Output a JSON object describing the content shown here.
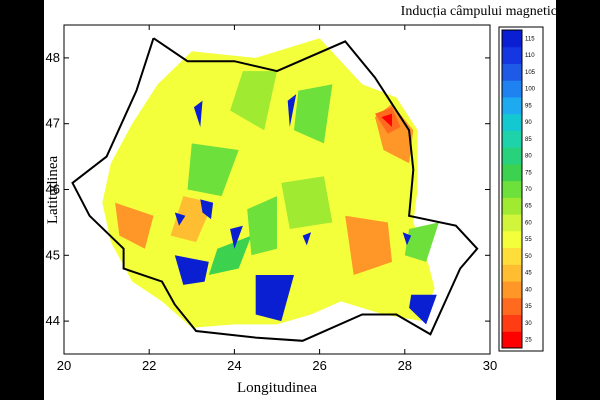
{
  "chart_data": {
    "type": "heatmap",
    "title": "Inducția câmpului magnetic terestru (μT)",
    "xlabel": "Longitudinea",
    "ylabel": "Latitudinea",
    "xlim": [
      20,
      30
    ],
    "ylim": [
      43.5,
      48.5
    ],
    "xticks": [
      20,
      22,
      24,
      26,
      28,
      30
    ],
    "yticks": [
      44,
      45,
      46,
      47,
      48
    ],
    "colorbar": {
      "min": 25,
      "max": 115,
      "step": 5,
      "ticks": [
        25,
        30,
        35,
        40,
        45,
        50,
        55,
        60,
        65,
        70,
        75,
        80,
        85,
        90,
        95,
        100,
        105,
        110,
        115
      ],
      "colors": [
        "#ff0000",
        "#ff3c14",
        "#ff6a1e",
        "#ff9628",
        "#ffbe32",
        "#ffde3c",
        "#f4ff3c",
        "#d2f53c",
        "#a0ea32",
        "#6ee03c",
        "#3cd250",
        "#28d27d",
        "#1ed2aa",
        "#14c8d2",
        "#1eaaf0",
        "#1e82f0",
        "#1e5ae6",
        "#1437e1",
        "#0a1ed2"
      ]
    },
    "outline": [
      [
        22.1,
        48.3
      ],
      [
        22.9,
        47.95
      ],
      [
        24.0,
        47.95
      ],
      [
        25.0,
        47.8
      ],
      [
        26.6,
        48.25
      ],
      [
        27.3,
        47.7
      ],
      [
        28.1,
        46.9
      ],
      [
        28.2,
        46.3
      ],
      [
        28.1,
        45.6
      ],
      [
        29.2,
        45.45
      ],
      [
        29.7,
        45.1
      ],
      [
        29.3,
        44.8
      ],
      [
        28.6,
        43.8
      ],
      [
        27.8,
        44.1
      ],
      [
        27.0,
        44.1
      ],
      [
        25.6,
        43.7
      ],
      [
        24.5,
        43.75
      ],
      [
        23.1,
        43.85
      ],
      [
        22.6,
        44.25
      ],
      [
        22.3,
        44.6
      ],
      [
        21.4,
        44.8
      ],
      [
        21.4,
        45.1
      ],
      [
        20.6,
        45.6
      ],
      [
        20.2,
        46.1
      ],
      [
        21.0,
        46.5
      ],
      [
        21.7,
        47.5
      ],
      [
        22.1,
        48.3
      ]
    ],
    "field_region": [
      [
        23.0,
        48.1
      ],
      [
        24.5,
        48.0
      ],
      [
        26.0,
        48.3
      ],
      [
        27.0,
        47.6
      ],
      [
        27.8,
        47.4
      ],
      [
        28.3,
        46.9
      ],
      [
        28.3,
        46.0
      ],
      [
        28.2,
        45.5
      ],
      [
        28.5,
        45.0
      ],
      [
        28.7,
        44.5
      ],
      [
        28.4,
        44.0
      ],
      [
        27.5,
        44.1
      ],
      [
        26.5,
        44.3
      ],
      [
        25.8,
        44.1
      ],
      [
        25.0,
        43.95
      ],
      [
        24.0,
        43.95
      ],
      [
        23.0,
        43.9
      ],
      [
        22.3,
        44.3
      ],
      [
        21.6,
        44.6
      ],
      [
        21.1,
        45.2
      ],
      [
        20.9,
        45.8
      ],
      [
        21.1,
        46.4
      ],
      [
        21.6,
        47.0
      ],
      [
        22.2,
        47.6
      ],
      [
        23.0,
        48.1
      ]
    ],
    "patches": [
      {
        "value": 40,
        "points": [
          [
            27.3,
            47.1
          ],
          [
            27.7,
            47.3
          ],
          [
            28.2,
            46.9
          ],
          [
            28.1,
            46.4
          ],
          [
            27.5,
            46.6
          ]
        ]
      },
      {
        "value": 35,
        "points": [
          [
            27.3,
            47.15
          ],
          [
            27.7,
            47.25
          ],
          [
            27.9,
            46.95
          ],
          [
            27.6,
            46.85
          ]
        ]
      },
      {
        "value": 25,
        "points": [
          [
            27.45,
            47.1
          ],
          [
            27.7,
            47.15
          ],
          [
            27.7,
            46.95
          ]
        ]
      },
      {
        "value": 65,
        "points": [
          [
            24.2,
            47.8
          ],
          [
            25.0,
            47.8
          ],
          [
            24.7,
            46.9
          ],
          [
            23.9,
            47.2
          ]
        ]
      },
      {
        "value": 70,
        "points": [
          [
            25.5,
            47.5
          ],
          [
            26.3,
            47.6
          ],
          [
            26.1,
            46.7
          ],
          [
            25.4,
            46.9
          ]
        ]
      },
      {
        "value": 70,
        "points": [
          [
            23.0,
            46.7
          ],
          [
            24.1,
            46.6
          ],
          [
            23.7,
            45.9
          ],
          [
            22.9,
            46.0
          ]
        ]
      },
      {
        "value": 65,
        "points": [
          [
            25.1,
            46.1
          ],
          [
            26.1,
            46.2
          ],
          [
            26.3,
            45.5
          ],
          [
            25.3,
            45.4
          ]
        ]
      },
      {
        "value": 75,
        "points": [
          [
            23.6,
            45.1
          ],
          [
            24.4,
            45.3
          ],
          [
            24.1,
            44.8
          ],
          [
            23.4,
            44.7
          ]
        ]
      },
      {
        "value": 70,
        "points": [
          [
            28.1,
            45.4
          ],
          [
            28.8,
            45.5
          ],
          [
            28.5,
            44.9
          ],
          [
            28.0,
            45.0
          ]
        ]
      },
      {
        "value": 40,
        "points": [
          [
            21.2,
            45.8
          ],
          [
            22.1,
            45.6
          ],
          [
            21.9,
            45.1
          ],
          [
            21.3,
            45.3
          ]
        ]
      },
      {
        "value": 40,
        "points": [
          [
            26.6,
            45.6
          ],
          [
            27.6,
            45.5
          ],
          [
            27.7,
            44.9
          ],
          [
            26.8,
            44.7
          ]
        ]
      },
      {
        "value": 45,
        "points": [
          [
            22.8,
            45.9
          ],
          [
            23.5,
            45.8
          ],
          [
            23.1,
            45.2
          ],
          [
            22.5,
            45.3
          ]
        ]
      },
      {
        "value": 70,
        "points": [
          [
            24.3,
            45.7
          ],
          [
            25.0,
            45.9
          ],
          [
            25.0,
            45.1
          ],
          [
            24.4,
            45.0
          ]
        ]
      },
      {
        "value": 115,
        "points": [
          [
            23.05,
            47.25
          ],
          [
            23.25,
            47.35
          ],
          [
            23.2,
            46.95
          ]
        ]
      },
      {
        "value": 115,
        "points": [
          [
            25.25,
            47.35
          ],
          [
            25.45,
            47.45
          ],
          [
            25.3,
            46.95
          ]
        ]
      },
      {
        "value": 115,
        "points": [
          [
            23.2,
            45.85
          ],
          [
            23.5,
            45.8
          ],
          [
            23.45,
            45.55
          ],
          [
            23.25,
            45.65
          ]
        ]
      },
      {
        "value": 115,
        "points": [
          [
            22.6,
            45.65
          ],
          [
            22.85,
            45.6
          ],
          [
            22.7,
            45.45
          ]
        ]
      },
      {
        "value": 115,
        "points": [
          [
            23.9,
            45.4
          ],
          [
            24.2,
            45.45
          ],
          [
            24.0,
            45.1
          ]
        ]
      },
      {
        "value": 115,
        "points": [
          [
            22.6,
            45.0
          ],
          [
            23.4,
            44.9
          ],
          [
            23.3,
            44.6
          ],
          [
            22.8,
            44.55
          ]
        ]
      },
      {
        "value": 115,
        "points": [
          [
            24.5,
            44.7
          ],
          [
            25.4,
            44.7
          ],
          [
            25.1,
            44.0
          ],
          [
            24.5,
            44.1
          ]
        ]
      },
      {
        "value": 115,
        "points": [
          [
            28.15,
            44.4
          ],
          [
            28.75,
            44.4
          ],
          [
            28.5,
            43.95
          ],
          [
            28.1,
            44.2
          ]
        ]
      },
      {
        "value": 115,
        "points": [
          [
            27.95,
            45.35
          ],
          [
            28.15,
            45.3
          ],
          [
            28.05,
            45.15
          ]
        ]
      },
      {
        "value": 115,
        "points": [
          [
            25.6,
            45.3
          ],
          [
            25.8,
            45.35
          ],
          [
            25.7,
            45.15
          ]
        ]
      }
    ]
  }
}
